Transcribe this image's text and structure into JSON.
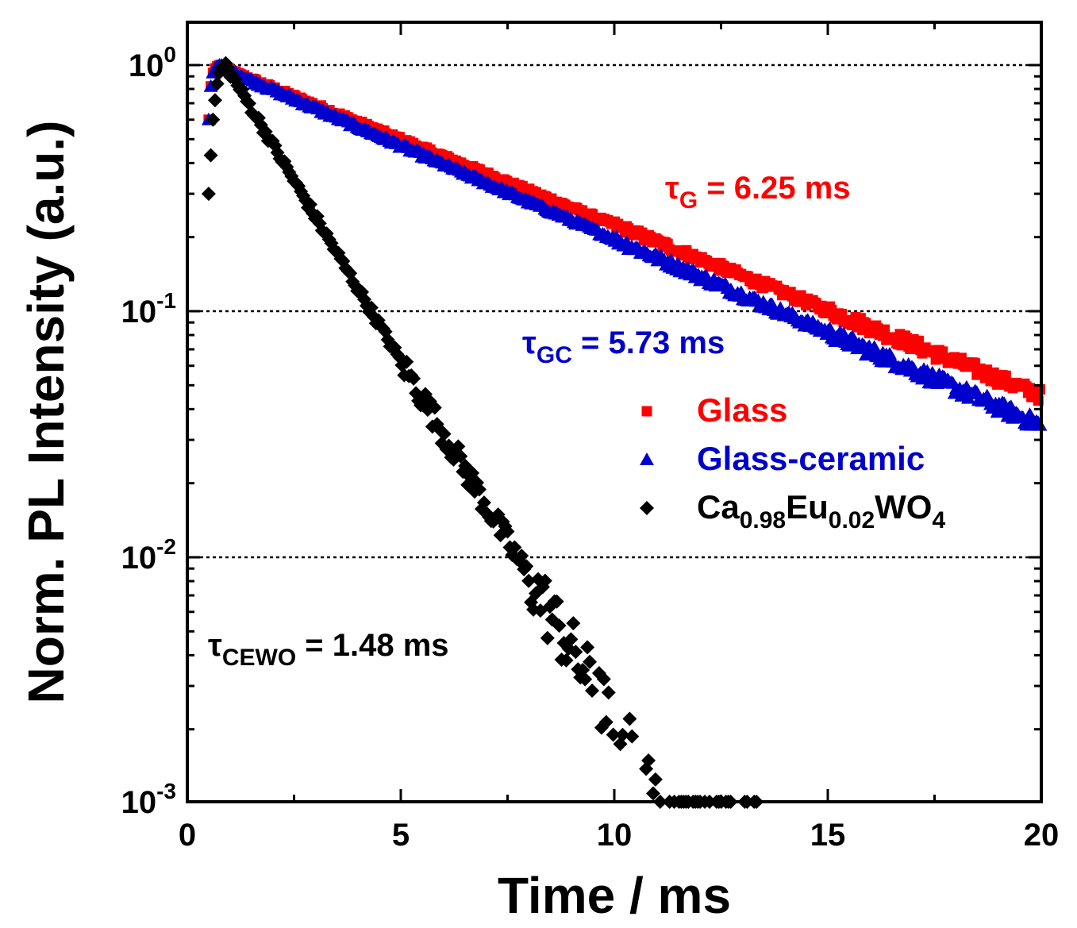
{
  "chart_data": {
    "type": "scatter",
    "title": "",
    "xlabel": "Time / ms",
    "ylabel": "Norm. PL Intensity (a.u.)",
    "xlim": [
      0,
      20
    ],
    "ylim": [
      0.001,
      1.5
    ],
    "yscale": "log",
    "x_ticks": [
      0,
      5,
      10,
      15,
      20
    ],
    "x_tick_labels": [
      "0",
      "5",
      "10",
      "15",
      "20"
    ],
    "y_ticks": [
      {
        "value": 1,
        "base": "10",
        "exp": "0"
      },
      {
        "value": 0.1,
        "base": "10",
        "exp": "-1"
      },
      {
        "value": 0.01,
        "base": "10",
        "exp": "-2"
      },
      {
        "value": 0.001,
        "base": "10",
        "exp": "-3"
      }
    ],
    "grid": {
      "horizontal_dotted_at": [
        1,
        0.1,
        0.01
      ]
    },
    "legend_position": "right",
    "series": [
      {
        "name": "Glass",
        "color": "#ff0000",
        "marker": "square",
        "peak_time": 0.85,
        "lifetime_ms": 6.25,
        "t_end": 20
      },
      {
        "name": "Glass-ceramic",
        "color": "#0000cc",
        "marker": "triangle",
        "peak_time": 0.85,
        "lifetime_ms": 5.73,
        "t_end": 20
      },
      {
        "name": "Ca0.98Eu0.02WO4",
        "color": "#000000",
        "marker": "diamond",
        "peak_time": 0.9,
        "lifetime_ms": 1.48,
        "t_end": 13.5
      }
    ],
    "annotations": [
      {
        "id": "tau-g",
        "color": "#ff0000",
        "symbol": "τ",
        "sub": "G",
        "rest": " = 6.25 ms"
      },
      {
        "id": "tau-gc",
        "color": "#0000cc",
        "symbol": "τ",
        "sub": "GC",
        "rest": " = 5.73 ms"
      },
      {
        "id": "tau-cewo",
        "color": "#000000",
        "symbol": "τ",
        "sub": "CEWO",
        "rest": " = 1.48 ms"
      }
    ],
    "legend": [
      {
        "color": "#ff0000",
        "marker": "square",
        "parts": [
          {
            "t": "Glass"
          }
        ]
      },
      {
        "color": "#0000cc",
        "marker": "triangle",
        "parts": [
          {
            "t": "Glass-ceramic"
          }
        ]
      },
      {
        "color": "#000000",
        "marker": "diamond",
        "parts": [
          {
            "t": "Ca"
          },
          {
            "t": "0.98",
            "sub": true
          },
          {
            "t": "Eu"
          },
          {
            "t": "0.02",
            "sub": true
          },
          {
            "t": "WO"
          },
          {
            "t": "4",
            "sub": true
          }
        ]
      }
    ]
  }
}
